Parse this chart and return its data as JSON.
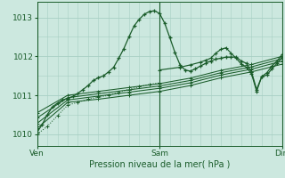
{
  "xlabel": "Pression niveau de la mer( hPa )",
  "bg_color": "#cce8df",
  "grid_color": "#a8cfc4",
  "line_color": "#1a5c2a",
  "xlim": [
    0,
    48
  ],
  "ylim": [
    1009.7,
    1013.4
  ],
  "yticks": [
    1010,
    1011,
    1012,
    1013
  ],
  "xticks": [
    0,
    24,
    48
  ],
  "xtick_labels": [
    "Ven",
    "Sam",
    "Dim"
  ],
  "line1_x": [
    0,
    1,
    2,
    3,
    4,
    5,
    6,
    7,
    8,
    9,
    10,
    11,
    12,
    13,
    14,
    15,
    16,
    17,
    18,
    19,
    20,
    21,
    22,
    23,
    24,
    25,
    26,
    27,
    28,
    29,
    30,
    31,
    32,
    33,
    34,
    35,
    36,
    37,
    38,
    39,
    40,
    41,
    42,
    43,
    44,
    45,
    46,
    47,
    48
  ],
  "line1_y": [
    1010.05,
    1010.25,
    1010.5,
    1010.7,
    1010.8,
    1010.88,
    1010.92,
    1010.97,
    1011.05,
    1011.15,
    1011.25,
    1011.38,
    1011.45,
    1011.5,
    1011.6,
    1011.72,
    1011.95,
    1012.2,
    1012.5,
    1012.78,
    1012.95,
    1013.08,
    1013.15,
    1013.17,
    1013.1,
    1012.85,
    1012.48,
    1012.1,
    1011.78,
    1011.65,
    1011.62,
    1011.68,
    1011.75,
    1011.82,
    1011.88,
    1011.93,
    1011.95,
    1011.98,
    1011.98,
    1011.98,
    1011.88,
    1011.82,
    1011.6,
    1011.15,
    1011.48,
    1011.52,
    1011.68,
    1011.82,
    1011.98
  ],
  "line2_x": [
    0,
    6,
    12,
    18,
    24,
    30,
    36,
    42,
    48
  ],
  "line2_y": [
    1010.15,
    1010.82,
    1010.9,
    1011.0,
    1011.1,
    1011.25,
    1011.45,
    1011.6,
    1011.8
  ],
  "line3_x": [
    0,
    6,
    12,
    18,
    24,
    30,
    36,
    42,
    48
  ],
  "line3_y": [
    1010.28,
    1010.88,
    1010.98,
    1011.08,
    1011.18,
    1011.32,
    1011.52,
    1011.67,
    1011.88
  ],
  "line4_x": [
    0,
    6,
    12,
    18,
    24,
    30,
    36,
    42,
    48
  ],
  "line4_y": [
    1010.42,
    1010.94,
    1011.04,
    1011.14,
    1011.24,
    1011.38,
    1011.58,
    1011.73,
    1011.94
  ],
  "line5_x": [
    0,
    6,
    12,
    18,
    24,
    30,
    36,
    42,
    48
  ],
  "line5_y": [
    1010.55,
    1011.0,
    1011.1,
    1011.2,
    1011.3,
    1011.44,
    1011.64,
    1011.79,
    1012.0
  ],
  "line6_x": [
    24,
    28,
    30,
    32,
    33,
    34,
    35,
    36,
    37,
    38,
    39,
    40,
    41,
    42,
    43,
    44,
    45,
    46,
    47,
    48
  ],
  "line6_y": [
    1011.65,
    1011.72,
    1011.78,
    1011.85,
    1011.9,
    1011.95,
    1012.08,
    1012.18,
    1012.22,
    1012.08,
    1011.95,
    1011.8,
    1011.72,
    1011.55,
    1011.1,
    1011.48,
    1011.58,
    1011.75,
    1011.88,
    1012.05
  ],
  "line7_x": [
    0,
    2,
    4,
    6,
    8,
    10,
    12,
    14,
    16,
    18,
    20,
    22,
    24
  ],
  "line7_y": [
    1010.0,
    1010.2,
    1010.48,
    1010.75,
    1010.82,
    1010.9,
    1010.95,
    1011.0,
    1011.08,
    1011.15,
    1011.22,
    1011.28,
    1011.32
  ]
}
